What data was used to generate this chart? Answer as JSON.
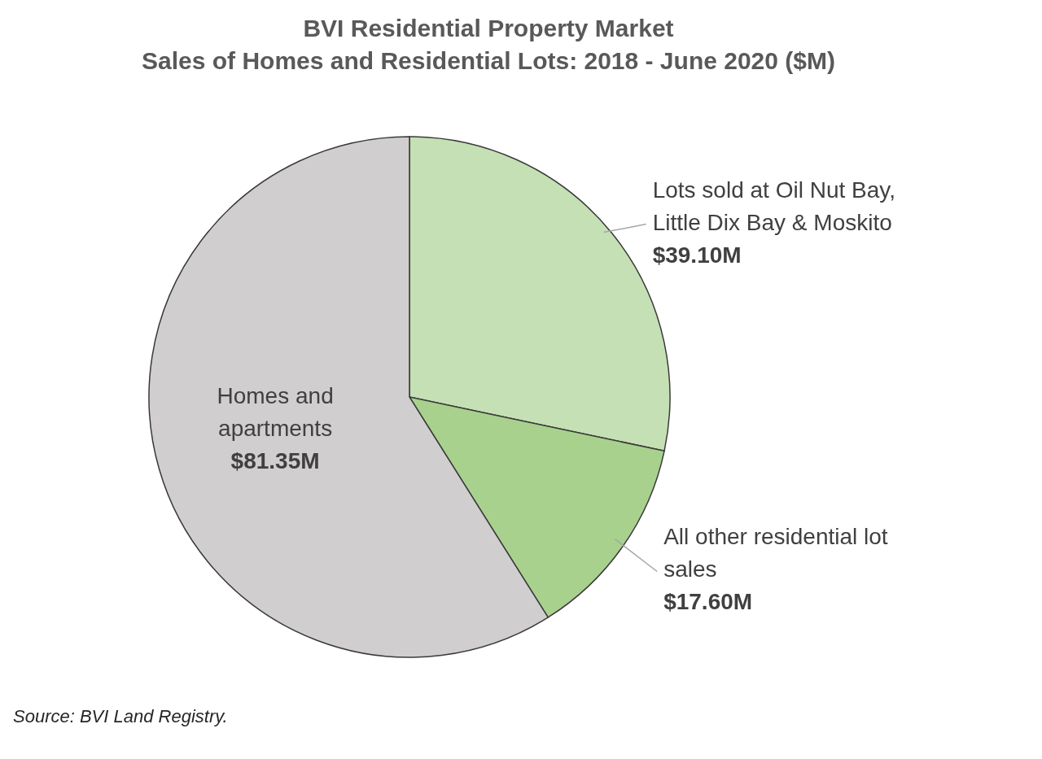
{
  "chart_data": {
    "type": "pie",
    "title": "BVI Residential Property Market",
    "subtitle": "Sales of Homes and Residential Lots: 2018 - June 2020 ($M)",
    "categories": [
      "Lots sold at Oil Nut Bay, Little Dix Bay & Moskito",
      "All other residential lot sales",
      "Homes and apartments"
    ],
    "values": [
      39.1,
      17.6,
      81.35
    ],
    "value_labels": [
      "$39.10M",
      "$17.60M",
      "$81.35M"
    ],
    "colors": [
      "#c5e0b4",
      "#a9d18e",
      "#d0cece"
    ],
    "annotations": [
      "Source: BVI Land Registry."
    ]
  }
}
